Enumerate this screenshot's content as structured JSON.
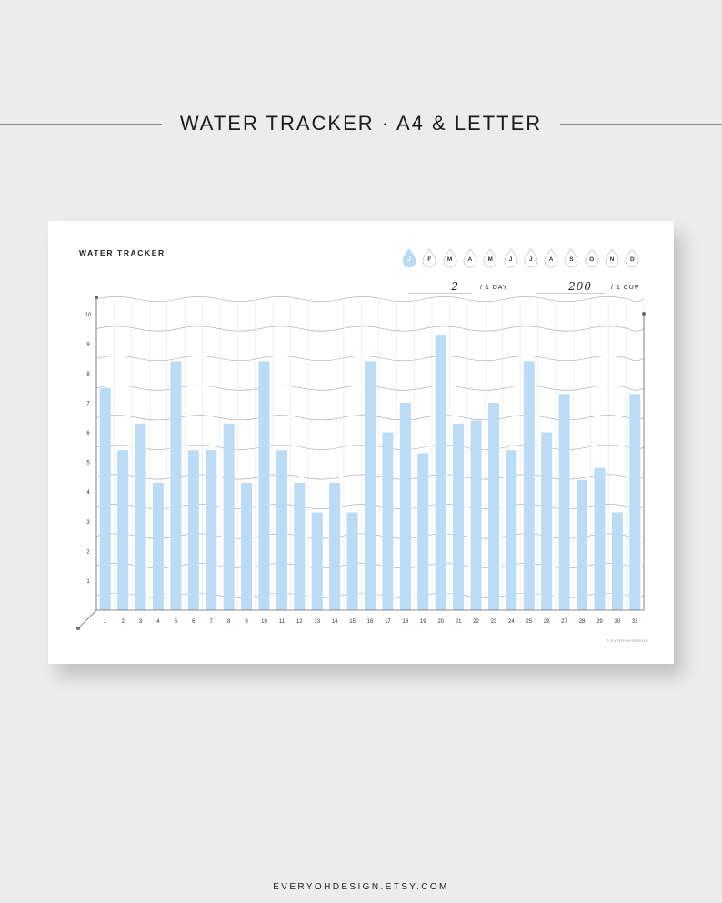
{
  "banner": {
    "title": "WATER TRACKER · A4 & LETTER"
  },
  "tracker": {
    "title": "WATER TRACKER",
    "months": [
      "J",
      "F",
      "M",
      "A",
      "M",
      "J",
      "J",
      "A",
      "S",
      "O",
      "N",
      "D"
    ],
    "active_month_index": 0,
    "goal_value": "2",
    "goal_unit": "/ 1 DAY",
    "cup_value": "200",
    "cup_unit": "/ 1 CUP",
    "copyright": "© EVERYOHDESIGN"
  },
  "colors": {
    "bar": "#bcdcf5",
    "active_drop": "#b9daf3",
    "wave": "#a8a8a8",
    "axis": "#666666"
  },
  "chart_data": {
    "type": "bar",
    "categories": [
      "1",
      "2",
      "3",
      "4",
      "5",
      "6",
      "7",
      "8",
      "9",
      "10",
      "11",
      "12",
      "13",
      "14",
      "15",
      "16",
      "17",
      "18",
      "19",
      "20",
      "21",
      "22",
      "23",
      "24",
      "25",
      "26",
      "27",
      "28",
      "29",
      "30",
      "31"
    ],
    "values": [
      7.5,
      5.4,
      6.3,
      4.3,
      8.4,
      5.4,
      5.4,
      6.3,
      4.3,
      8.4,
      5.4,
      4.3,
      3.3,
      4.3,
      3.3,
      8.4,
      6.0,
      7.0,
      5.3,
      9.3,
      6.3,
      6.4,
      7.0,
      5.4,
      8.4,
      6.0,
      7.3,
      4.4,
      4.8,
      3.3,
      7.3
    ],
    "y_ticks": [
      "1",
      "2",
      "3",
      "4",
      "5",
      "6",
      "7",
      "8",
      "9",
      "10"
    ],
    "ylim": [
      0,
      10.5
    ],
    "grid": true
  },
  "footer": {
    "text": "EVERYOHDESIGN.ETSY.COM"
  }
}
